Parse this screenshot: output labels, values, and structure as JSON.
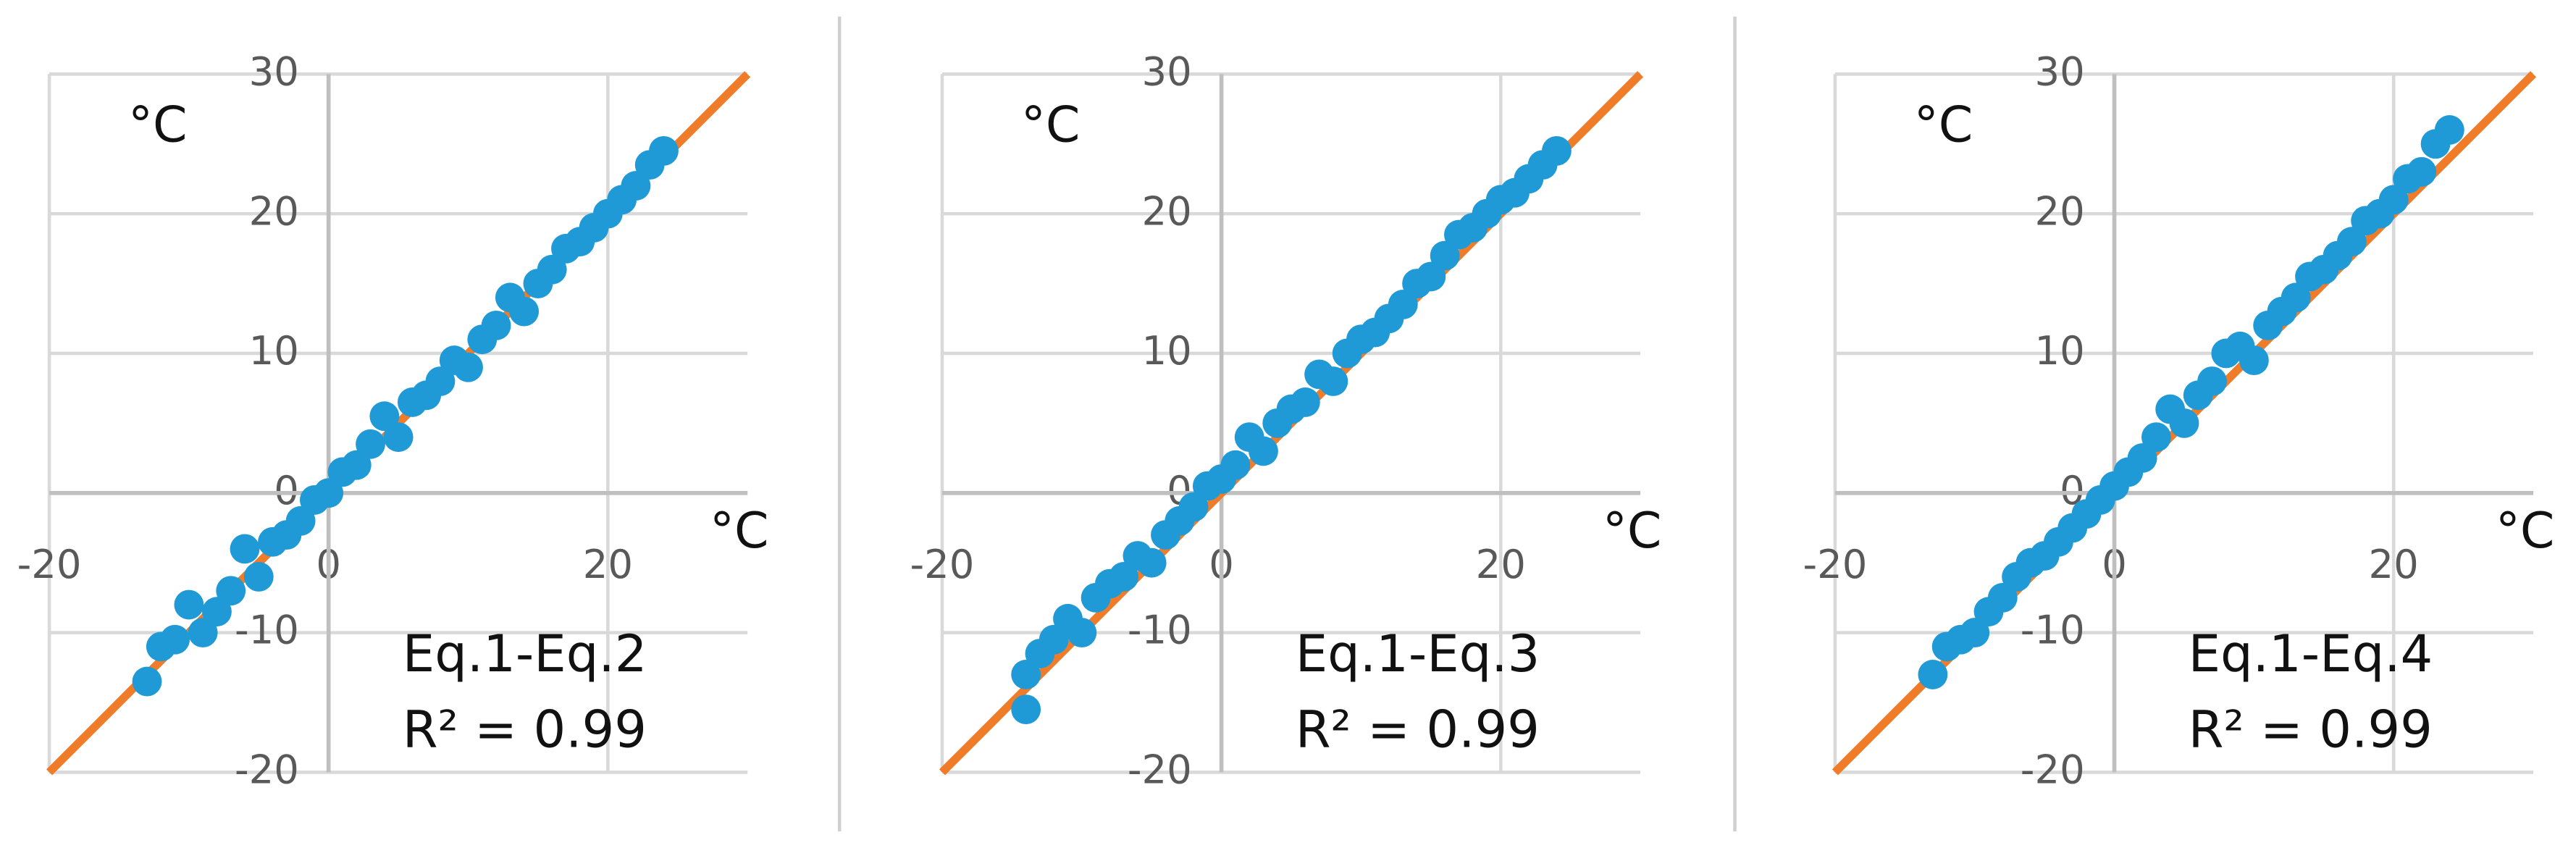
{
  "chart_data": [
    {
      "type": "scatter",
      "xlabel": "°C",
      "ylabel": "°C",
      "annotations": [
        "Eq.1-Eq.2",
        "R² = 0.99"
      ],
      "xlim": [
        -20,
        30
      ],
      "ylim": [
        -20,
        30
      ],
      "xticks": [
        -20,
        0,
        20
      ],
      "yticks": [
        -20,
        -10,
        0,
        10,
        20,
        30
      ],
      "grid": true,
      "series": [
        {
          "type": "line",
          "color": "#f07c2a",
          "x": [
            -20,
            30
          ],
          "values": [
            -20,
            30
          ]
        },
        {
          "color": "#1f9ad6",
          "x": [
            -13,
            -12,
            -11,
            -10,
            -9,
            -8,
            -7,
            -6,
            -5,
            -4,
            -3,
            -2,
            -1,
            0,
            1,
            2,
            3,
            4,
            5,
            6,
            7,
            8,
            9,
            10,
            11,
            12,
            13,
            14,
            15,
            16,
            17,
            18,
            19,
            20,
            21,
            22,
            23,
            24
          ],
          "values": [
            -13.5,
            -11,
            -10.5,
            -8,
            -10,
            -8.5,
            -7,
            -4,
            -6,
            -3.5,
            -3,
            -2,
            -0.5,
            0,
            1.5,
            2,
            3.5,
            5.5,
            4,
            6.5,
            7,
            8,
            9.5,
            9,
            11,
            12,
            14,
            13,
            15,
            16,
            17.5,
            18,
            19,
            20,
            21,
            22,
            23.5,
            24.5
          ]
        }
      ]
    },
    {
      "type": "scatter",
      "xlabel": "°C",
      "ylabel": "°C",
      "annotations": [
        "Eq.1-Eq.3",
        "R² = 0.99"
      ],
      "xlim": [
        -20,
        30
      ],
      "ylim": [
        -20,
        30
      ],
      "xticks": [
        -20,
        0,
        20
      ],
      "yticks": [
        -20,
        -10,
        0,
        10,
        20,
        30
      ],
      "grid": true,
      "series": [
        {
          "type": "line",
          "color": "#f07c2a",
          "x": [
            -20,
            30
          ],
          "values": [
            -20,
            30
          ]
        },
        {
          "color": "#1f9ad6",
          "x": [
            -14,
            -14,
            -13,
            -12,
            -11,
            -10,
            -9,
            -8,
            -7,
            -6,
            -5,
            -4,
            -3,
            -2,
            -1,
            0,
            1,
            2,
            3,
            4,
            5,
            6,
            7,
            8,
            9,
            10,
            11,
            12,
            13,
            14,
            15,
            16,
            17,
            18,
            19,
            20,
            21,
            22,
            23,
            24
          ],
          "values": [
            -13,
            -15.5,
            -11.5,
            -10.5,
            -9,
            -10,
            -7.5,
            -6.5,
            -6,
            -4.5,
            -5,
            -3,
            -2,
            -1,
            0.5,
            1,
            2,
            4,
            3,
            5,
            6,
            6.5,
            8.5,
            8,
            10,
            11,
            11.5,
            12.5,
            13.5,
            15,
            15.5,
            17,
            18.5,
            19,
            20,
            21,
            21.5,
            22.5,
            23.5,
            24.5
          ]
        }
      ]
    },
    {
      "type": "scatter",
      "xlabel": "°C",
      "ylabel": "°C",
      "annotations": [
        "Eq.1-Eq.4",
        "R² = 0.99"
      ],
      "xlim": [
        -20,
        30
      ],
      "ylim": [
        -20,
        30
      ],
      "xticks": [
        -20,
        0,
        20
      ],
      "yticks": [
        -20,
        -10,
        0,
        10,
        20,
        30
      ],
      "grid": true,
      "series": [
        {
          "type": "line",
          "color": "#f07c2a",
          "x": [
            -20,
            30
          ],
          "values": [
            -20,
            30
          ]
        },
        {
          "color": "#1f9ad6",
          "x": [
            -13,
            -12,
            -11,
            -10,
            -9,
            -8,
            -7,
            -6,
            -5,
            -4,
            -3,
            -2,
            -1,
            0,
            1,
            2,
            3,
            4,
            5,
            6,
            7,
            8,
            9,
            10,
            11,
            12,
            13,
            14,
            15,
            16,
            17,
            18,
            19,
            20,
            21,
            22,
            23,
            24
          ],
          "values": [
            -13,
            -11,
            -10.5,
            -10,
            -8.5,
            -7.5,
            -6,
            -5,
            -4.5,
            -3.5,
            -2.5,
            -1.5,
            -0.5,
            0.5,
            1.5,
            2.5,
            4,
            6,
            5,
            7,
            8,
            10,
            10.5,
            9.5,
            12,
            13,
            14,
            15.5,
            16,
            17,
            18,
            19.5,
            20,
            21,
            22.5,
            23,
            25,
            26
          ]
        }
      ]
    }
  ]
}
